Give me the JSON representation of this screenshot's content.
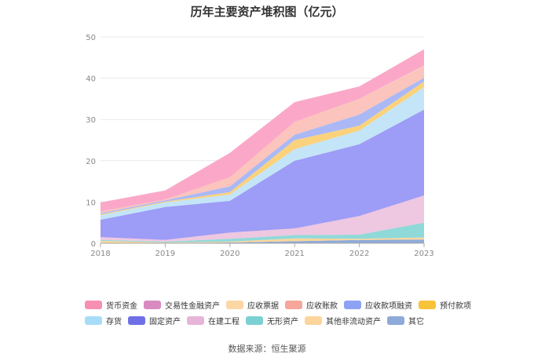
{
  "chart_data": {
    "type": "area",
    "title": "历年主要资产堆积图（亿元）",
    "x": [
      "2018",
      "2019",
      "2020",
      "2021",
      "2022",
      "2023"
    ],
    "ylim": [
      0,
      50
    ],
    "yticks": [
      0,
      10,
      20,
      30,
      40,
      50
    ],
    "grid": true,
    "legend_position": "bottom",
    "series": [
      {
        "name": "其它",
        "color": "#8eaad8",
        "values": [
          0.1,
          0.1,
          0.2,
          0.5,
          0.8,
          0.9
        ]
      },
      {
        "name": "其他非流动资产",
        "color": "#fbd59b",
        "values": [
          0.5,
          0.1,
          0.2,
          0.7,
          0.3,
          0.5
        ]
      },
      {
        "name": "无形资产",
        "color": "#90d9d9",
        "values": [
          0.2,
          0.2,
          0.7,
          0.8,
          1.0,
          3.6
        ]
      },
      {
        "name": "在建工程",
        "color": "#eec7e0",
        "values": [
          0.7,
          0.4,
          1.5,
          1.6,
          4.5,
          6.6
        ]
      },
      {
        "name": "固定资产",
        "color": "#9d9cf6",
        "values": [
          4.2,
          8.0,
          7.7,
          16.4,
          17.4,
          20.8
        ]
      },
      {
        "name": "存货",
        "color": "#c3e5f7",
        "values": [
          1.1,
          1.1,
          1.5,
          2.8,
          3.3,
          5.4
        ]
      },
      {
        "name": "预付款项",
        "color": "#fbd27c",
        "values": [
          0.2,
          0.2,
          0.6,
          2.2,
          1.2,
          1.4
        ]
      },
      {
        "name": "应收款项融资",
        "color": "#aab9f6",
        "values": [
          0.3,
          0.3,
          1.4,
          1.3,
          2.7,
          0.9
        ]
      },
      {
        "name": "应收账款",
        "color": "#fbc4bc",
        "values": [
          0.4,
          0.2,
          2.2,
          3.1,
          3.8,
          2.8
        ]
      },
      {
        "name": "应收票据",
        "color": "#fde3c4",
        "values": [
          0.0,
          0.0,
          0.0,
          0.0,
          0.0,
          0.1
        ]
      },
      {
        "name": "交易性金融资产",
        "color": "#e8b0d6",
        "values": [
          0.0,
          0.0,
          0.0,
          0.0,
          0.0,
          0.0
        ]
      },
      {
        "name": "货币资金",
        "color": "#fba8c8",
        "values": [
          2.2,
          2.2,
          5.9,
          4.8,
          3.0,
          4.0
        ]
      }
    ]
  },
  "legend": {
    "row1": [
      {
        "name": "货币资金",
        "color": "#f78fb3"
      },
      {
        "name": "交易性金融资产",
        "color": "#d98ac0"
      },
      {
        "name": "应收票据",
        "color": "#fdd6a6"
      },
      {
        "name": "应收账款",
        "color": "#f6a69a"
      },
      {
        "name": "应收款项融资",
        "color": "#8da2f5"
      },
      {
        "name": "预付款项",
        "color": "#f8c338"
      }
    ],
    "row2": [
      {
        "name": "存货",
        "color": "#a7dcf7"
      },
      {
        "name": "固定资产",
        "color": "#7070e6"
      },
      {
        "name": "在建工程",
        "color": "#e6b5d9"
      },
      {
        "name": "无形资产",
        "color": "#7cd0d4"
      },
      {
        "name": "其他非流动资产",
        "color": "#fbd59b"
      },
      {
        "name": "其它",
        "color": "#8eaad8"
      }
    ]
  },
  "source": "数据来源：恒生聚源"
}
